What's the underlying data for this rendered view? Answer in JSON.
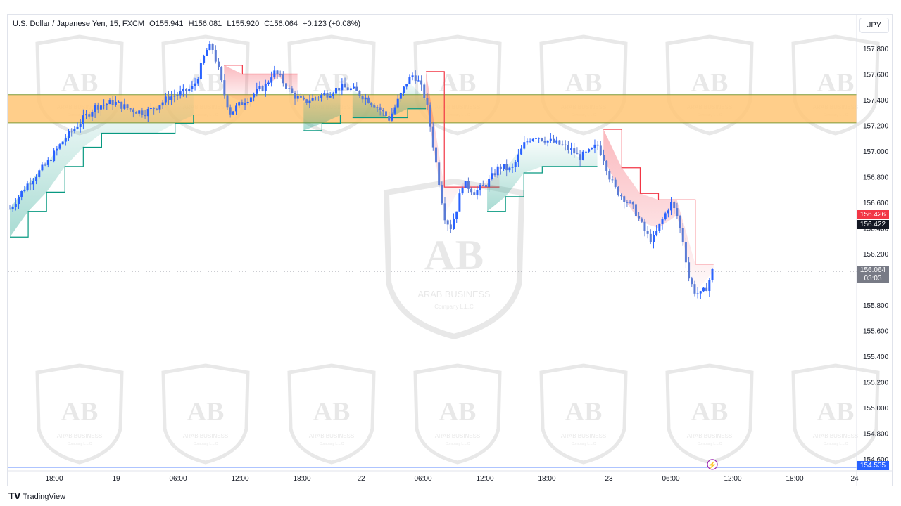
{
  "header": {
    "symbol": "U.S. Dollar / Japanese Yen, 15, FXCM",
    "open": "O155.941",
    "high": "H156.081",
    "low": "L155.920",
    "close": "C156.064",
    "change": "+0.123 (+0.08%)",
    "currency_button": "JPY"
  },
  "footer": {
    "brand": "TradingView"
  },
  "watermark": {
    "brand": "ARAB BUSINESS",
    "sub": "Company L.L.C",
    "letters": "AB"
  },
  "colors": {
    "zone_fill": "#ffc676",
    "zone_border": "#7d9a37",
    "up_candle": "#2962ff",
    "trail_red": "#f23645",
    "trail_green": "#089981",
    "last_price_bg": "#787b86",
    "red_tag_bg": "#f23645",
    "dark_tag_bg": "#131722",
    "bottom_line": "#2962ff"
  },
  "chart_data": {
    "type": "candlestick",
    "symbol": "USDJPY",
    "timeframe": "15",
    "ylim": [
      154.5,
      157.92
    ],
    "y_ticks": [
      "157.800",
      "157.600",
      "157.400",
      "157.200",
      "157.000",
      "156.800",
      "156.600",
      "156.400",
      "156.200",
      "156.000",
      "155.800",
      "155.600",
      "155.400",
      "155.200",
      "155.000",
      "154.800",
      "154.600"
    ],
    "x_ticks": [
      "18:00",
      "19",
      "06:00",
      "12:00",
      "18:00",
      "22",
      "06:00",
      "12:00",
      "18:00",
      "23",
      "06:00",
      "12:00",
      "18:00",
      "24"
    ],
    "resistance_zone": [
      157.22,
      157.44
    ],
    "price_tags": {
      "red": "156.426",
      "dark": "156.422",
      "last_price": "156.064",
      "countdown": "03:03",
      "bottom": "154.535"
    },
    "close_path": [
      [
        0,
        156.55
      ],
      [
        3,
        156.75
      ],
      [
        6,
        156.9
      ],
      [
        9,
        157.1
      ],
      [
        12,
        157.25
      ],
      [
        14,
        157.35
      ],
      [
        17,
        157.38
      ],
      [
        20,
        157.32
      ],
      [
        22,
        157.3
      ],
      [
        24,
        157.35
      ],
      [
        26,
        157.42
      ],
      [
        28,
        157.45
      ],
      [
        30,
        157.5
      ],
      [
        31,
        157.62
      ],
      [
        32,
        157.78
      ],
      [
        33,
        157.82
      ],
      [
        34,
        157.65
      ],
      [
        35,
        157.45
      ],
      [
        36,
        157.3
      ],
      [
        38,
        157.38
      ],
      [
        40,
        157.45
      ],
      [
        42,
        157.52
      ],
      [
        43,
        157.62
      ],
      [
        44,
        157.58
      ],
      [
        45,
        157.52
      ],
      [
        46,
        157.45
      ],
      [
        48,
        157.38
      ],
      [
        50,
        157.42
      ],
      [
        52,
        157.45
      ],
      [
        54,
        157.5
      ],
      [
        56,
        157.48
      ],
      [
        58,
        157.42
      ],
      [
        60,
        157.35
      ],
      [
        61,
        157.3
      ],
      [
        62,
        157.25
      ],
      [
        63,
        157.35
      ],
      [
        64,
        157.45
      ],
      [
        65,
        157.55
      ],
      [
        66,
        157.6
      ],
      [
        67,
        157.52
      ],
      [
        68,
        157.4
      ],
      [
        69,
        157.1
      ],
      [
        70,
        156.8
      ],
      [
        71,
        156.5
      ],
      [
        72,
        156.4
      ],
      [
        73,
        156.55
      ],
      [
        74,
        156.75
      ],
      [
        75,
        156.72
      ],
      [
        76,
        156.68
      ],
      [
        78,
        156.75
      ],
      [
        80,
        156.88
      ],
      [
        82,
        156.85
      ],
      [
        83,
        156.95
      ],
      [
        84,
        157.05
      ],
      [
        85,
        157.1
      ],
      [
        86,
        157.12
      ],
      [
        88,
        157.08
      ],
      [
        90,
        157.05
      ],
      [
        92,
        157.0
      ],
      [
        93,
        156.95
      ],
      [
        95,
        157.0
      ],
      [
        96,
        157.05
      ],
      [
        97,
        156.95
      ],
      [
        98,
        156.8
      ],
      [
        99,
        156.7
      ],
      [
        100,
        156.65
      ],
      [
        101,
        156.6
      ],
      [
        102,
        156.55
      ],
      [
        103,
        156.45
      ],
      [
        104,
        156.35
      ],
      [
        105,
        156.3
      ],
      [
        106,
        156.4
      ],
      [
        107,
        156.5
      ],
      [
        108,
        156.6
      ],
      [
        109,
        156.5
      ],
      [
        110,
        156.3
      ],
      [
        111,
        156.0
      ],
      [
        112,
        155.9
      ],
      [
        113,
        155.88
      ],
      [
        114,
        155.95
      ],
      [
        114.8,
        156.064
      ]
    ]
  }
}
